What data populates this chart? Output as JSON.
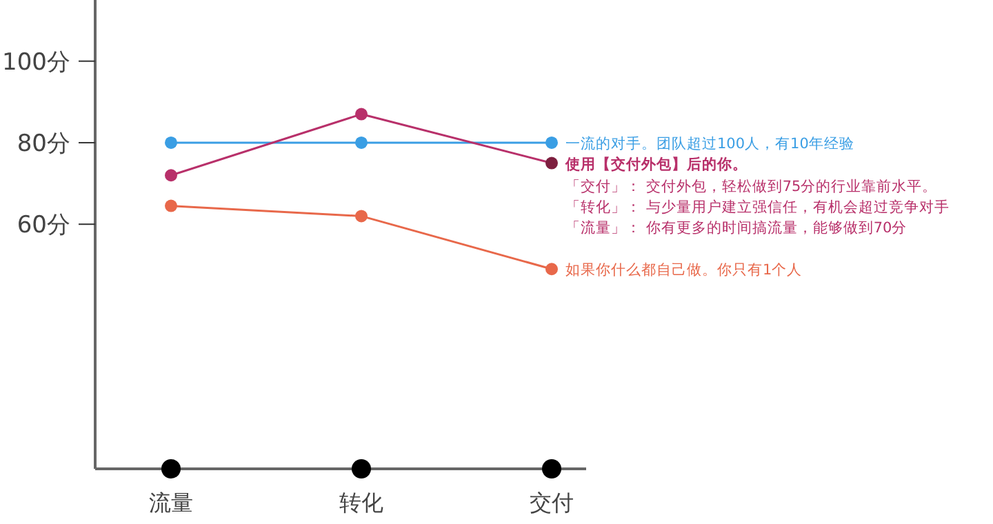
{
  "chart_data": {
    "type": "line",
    "categories": [
      "流量",
      "转化",
      "交付"
    ],
    "ylim": [
      0,
      115
    ],
    "yticks": [
      {
        "value": 60,
        "label": "60分"
      },
      {
        "value": 80,
        "label": "80分"
      },
      {
        "value": 100,
        "label": "100分"
      }
    ],
    "marker": "circle",
    "grid": false,
    "legend": false,
    "series": [
      {
        "name": "一流的对手。团队超过100人，有10年经验",
        "color": "#3a9ee4",
        "values": [
          80,
          80,
          80
        ]
      },
      {
        "name": "使用【交付外包】后的你。",
        "color": "#b8306a",
        "colors": [
          "#b8306a",
          "#b8306a",
          "#7d1f3f"
        ],
        "values": [
          72,
          87,
          75
        ]
      },
      {
        "name": "如果你什么都自己做。你只有1个人",
        "color": "#e8684a",
        "values": [
          64.5,
          62,
          49
        ]
      }
    ],
    "annotations": [
      "「交付」： 交付外包，轻松做到75分的行业靠前水平。",
      "「转化」： 与少量用户建立强信任，有机会超过竞争对手",
      "「流量」： 你有更多的时间搞流量，能够做到70分"
    ]
  }
}
